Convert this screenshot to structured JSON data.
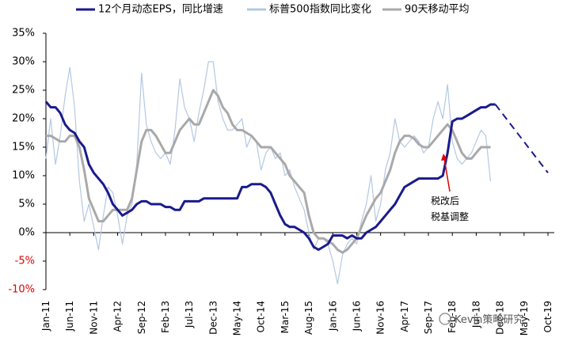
{
  "chart_data": {
    "type": "line",
    "title": "",
    "xlabel": "",
    "ylabel": "",
    "x_ticks": [
      "Jan-11",
      "Jun-11",
      "Nov-11",
      "Apr-12",
      "Sep-12",
      "Feb-13",
      "Jul-13",
      "Dec-13",
      "May-14",
      "Oct-14",
      "Mar-15",
      "Aug-15",
      "Jan-16",
      "Jun-16",
      "Nov-16",
      "Apr-17",
      "Sep-17",
      "Feb-18",
      "Jul-18",
      "Dec-18",
      "May-19",
      "Oct-19"
    ],
    "x_range": [
      "2011-01",
      "2019-10"
    ],
    "y_ticks": [
      "35%",
      "30%",
      "25%",
      "20%",
      "15%",
      "10%",
      "5%",
      "0%",
      "-5%",
      "-10%"
    ],
    "ylim": [
      -10,
      35
    ],
    "legend": {
      "position": "top",
      "items": [
        {
          "label": "12个月动态EPS，同比增速",
          "color": "#1a1a8c"
        },
        {
          "label": "标普500指数同比变化",
          "color": "#b4c8e2"
        },
        {
          "label": "90天移动平均",
          "color": "#a9a9a9"
        }
      ]
    },
    "series": [
      {
        "name": "12个月动态EPS，同比增速",
        "color": "#1a1a8c",
        "style": "solid",
        "points": [
          [
            "2011-01",
            23
          ],
          [
            "2011-02",
            22
          ],
          [
            "2011-03",
            22
          ],
          [
            "2011-04",
            21
          ],
          [
            "2011-05",
            19
          ],
          [
            "2011-06",
            18
          ],
          [
            "2011-07",
            17.5
          ],
          [
            "2011-08",
            16
          ],
          [
            "2011-09",
            15
          ],
          [
            "2011-10",
            12
          ],
          [
            "2011-11",
            10.5
          ],
          [
            "2011-12",
            9.5
          ],
          [
            "2012-01",
            8.5
          ],
          [
            "2012-02",
            7
          ],
          [
            "2012-03",
            5
          ],
          [
            "2012-04",
            4
          ],
          [
            "2012-05",
            3
          ],
          [
            "2012-06",
            3.5
          ],
          [
            "2012-07",
            4
          ],
          [
            "2012-08",
            5
          ],
          [
            "2012-09",
            5.5
          ],
          [
            "2012-10",
            5.5
          ],
          [
            "2012-11",
            5
          ],
          [
            "2012-12",
            5
          ],
          [
            "2013-01",
            5
          ],
          [
            "2013-02",
            4.5
          ],
          [
            "2013-03",
            4.5
          ],
          [
            "2013-04",
            4
          ],
          [
            "2013-05",
            4
          ],
          [
            "2013-06",
            5.5
          ],
          [
            "2013-07",
            5.5
          ],
          [
            "2013-08",
            5.5
          ],
          [
            "2013-09",
            5.5
          ],
          [
            "2013-10",
            6
          ],
          [
            "2013-11",
            6
          ],
          [
            "2013-12",
            6
          ],
          [
            "2014-01",
            6
          ],
          [
            "2014-02",
            6
          ],
          [
            "2014-03",
            6
          ],
          [
            "2014-04",
            6
          ],
          [
            "2014-05",
            6
          ],
          [
            "2014-06",
            8
          ],
          [
            "2014-07",
            8
          ],
          [
            "2014-08",
            8.5
          ],
          [
            "2014-09",
            8.5
          ],
          [
            "2014-10",
            8.5
          ],
          [
            "2014-11",
            8
          ],
          [
            "2014-12",
            7
          ],
          [
            "2015-01",
            5
          ],
          [
            "2015-02",
            3
          ],
          [
            "2015-03",
            1.5
          ],
          [
            "2015-04",
            1
          ],
          [
            "2015-05",
            1
          ],
          [
            "2015-06",
            0.5
          ],
          [
            "2015-07",
            0
          ],
          [
            "2015-08",
            -1
          ],
          [
            "2015-09",
            -2.5
          ],
          [
            "2015-10",
            -3
          ],
          [
            "2015-11",
            -2.5
          ],
          [
            "2015-12",
            -2
          ],
          [
            "2016-01",
            -0.5
          ],
          [
            "2016-02",
            -0.5
          ],
          [
            "2016-03",
            -0.5
          ],
          [
            "2016-04",
            -1
          ],
          [
            "2016-05",
            -0.5
          ],
          [
            "2016-06",
            -1
          ],
          [
            "2016-07",
            -1
          ],
          [
            "2016-08",
            0
          ],
          [
            "2016-09",
            0.5
          ],
          [
            "2016-10",
            1
          ],
          [
            "2016-11",
            2
          ],
          [
            "2016-12",
            3
          ],
          [
            "2017-01",
            4
          ],
          [
            "2017-02",
            5
          ],
          [
            "2017-03",
            6.5
          ],
          [
            "2017-04",
            8
          ],
          [
            "2017-05",
            8.5
          ],
          [
            "2017-06",
            9
          ],
          [
            "2017-07",
            9.5
          ],
          [
            "2017-08",
            9.5
          ],
          [
            "2017-09",
            9.5
          ],
          [
            "2017-10",
            9.5
          ],
          [
            "2017-11",
            9.5
          ],
          [
            "2017-12",
            10
          ],
          [
            "2018-01",
            14
          ],
          [
            "2018-02",
            19.5
          ],
          [
            "2018-03",
            20
          ],
          [
            "2018-04",
            20
          ],
          [
            "2018-05",
            20.5
          ],
          [
            "2018-06",
            21
          ],
          [
            "2018-07",
            21.5
          ],
          [
            "2018-08",
            22
          ],
          [
            "2018-09",
            22
          ],
          [
            "2018-10",
            22.5
          ],
          [
            "2018-11",
            22.5
          ]
        ]
      },
      {
        "name": "12个月动态EPS，同比增速 (预测)",
        "color": "#1a1a8c",
        "style": "dashed",
        "points": [
          [
            "2018-11",
            22.5
          ],
          [
            "2019-10",
            10.5
          ]
        ]
      },
      {
        "name": "标普500指数同比变化",
        "color": "#b4c8e2",
        "style": "solid",
        "points": [
          [
            "2011-01",
            13
          ],
          [
            "2011-02",
            20
          ],
          [
            "2011-03",
            12
          ],
          [
            "2011-04",
            17
          ],
          [
            "2011-05",
            24
          ],
          [
            "2011-06",
            29
          ],
          [
            "2011-07",
            22
          ],
          [
            "2011-08",
            9
          ],
          [
            "2011-09",
            2
          ],
          [
            "2011-10",
            5
          ],
          [
            "2011-11",
            1
          ],
          [
            "2011-12",
            -3
          ],
          [
            "2012-01",
            3
          ],
          [
            "2012-02",
            8
          ],
          [
            "2012-03",
            7
          ],
          [
            "2012-04",
            3
          ],
          [
            "2012-05",
            -2
          ],
          [
            "2012-06",
            3
          ],
          [
            "2012-07",
            5
          ],
          [
            "2012-08",
            12
          ],
          [
            "2012-09",
            28
          ],
          [
            "2012-10",
            19
          ],
          [
            "2012-11",
            16
          ],
          [
            "2012-12",
            14
          ],
          [
            "2013-01",
            13
          ],
          [
            "2013-02",
            14
          ],
          [
            "2013-03",
            12
          ],
          [
            "2013-04",
            18
          ],
          [
            "2013-05",
            27
          ],
          [
            "2013-06",
            22
          ],
          [
            "2013-07",
            20
          ],
          [
            "2013-08",
            16
          ],
          [
            "2013-09",
            21
          ],
          [
            "2013-10",
            25
          ],
          [
            "2013-11",
            30
          ],
          [
            "2013-12",
            30
          ],
          [
            "2014-01",
            23
          ],
          [
            "2014-02",
            20
          ],
          [
            "2014-03",
            18
          ],
          [
            "2014-04",
            18
          ],
          [
            "2014-05",
            19
          ],
          [
            "2014-06",
            20
          ],
          [
            "2014-07",
            15
          ],
          [
            "2014-08",
            17
          ],
          [
            "2014-09",
            16
          ],
          [
            "2014-10",
            11
          ],
          [
            "2014-11",
            14
          ],
          [
            "2014-12",
            15
          ],
          [
            "2015-01",
            13
          ],
          [
            "2015-02",
            14
          ],
          [
            "2015-03",
            10
          ],
          [
            "2015-04",
            11
          ],
          [
            "2015-05",
            8
          ],
          [
            "2015-06",
            6
          ],
          [
            "2015-07",
            4
          ],
          [
            "2015-08",
            0
          ],
          [
            "2015-09",
            -3
          ],
          [
            "2015-10",
            -1
          ],
          [
            "2015-11",
            -1
          ],
          [
            "2015-12",
            -2
          ],
          [
            "2016-01",
            -5
          ],
          [
            "2016-02",
            -9
          ],
          [
            "2016-03",
            -4
          ],
          [
            "2016-04",
            -2
          ],
          [
            "2016-05",
            -1
          ],
          [
            "2016-06",
            -2
          ],
          [
            "2016-07",
            2
          ],
          [
            "2016-08",
            5
          ],
          [
            "2016-09",
            10
          ],
          [
            "2016-10",
            2
          ],
          [
            "2016-11",
            5
          ],
          [
            "2016-12",
            11
          ],
          [
            "2017-01",
            14
          ],
          [
            "2017-02",
            20
          ],
          [
            "2017-03",
            16
          ],
          [
            "2017-04",
            15
          ],
          [
            "2017-05",
            16
          ],
          [
            "2017-06",
            17
          ],
          [
            "2017-07",
            16
          ],
          [
            "2017-08",
            14
          ],
          [
            "2017-09",
            15
          ],
          [
            "2017-10",
            20
          ],
          [
            "2017-11",
            23
          ],
          [
            "2017-12",
            20
          ],
          [
            "2018-01",
            26
          ],
          [
            "2018-02",
            16
          ],
          [
            "2018-03",
            13
          ],
          [
            "2018-04",
            12
          ],
          [
            "2018-05",
            13
          ],
          [
            "2018-06",
            14
          ],
          [
            "2018-07",
            16
          ],
          [
            "2018-08",
            18
          ],
          [
            "2018-09",
            17
          ],
          [
            "2018-10",
            9
          ]
        ]
      },
      {
        "name": "90天移动平均",
        "color": "#a9a9a9",
        "style": "solid",
        "points": [
          [
            "2011-01",
            17
          ],
          [
            "2011-02",
            17
          ],
          [
            "2011-03",
            16.5
          ],
          [
            "2011-04",
            16
          ],
          [
            "2011-05",
            16
          ],
          [
            "2011-06",
            17
          ],
          [
            "2011-07",
            17
          ],
          [
            "2011-08",
            15
          ],
          [
            "2011-09",
            11
          ],
          [
            "2011-10",
            6
          ],
          [
            "2011-11",
            4
          ],
          [
            "2011-12",
            2
          ],
          [
            "2012-01",
            2
          ],
          [
            "2012-02",
            3
          ],
          [
            "2012-03",
            4
          ],
          [
            "2012-04",
            4
          ],
          [
            "2012-05",
            4
          ],
          [
            "2012-06",
            4
          ],
          [
            "2012-07",
            6
          ],
          [
            "2012-08",
            11
          ],
          [
            "2012-09",
            16
          ],
          [
            "2012-10",
            18
          ],
          [
            "2012-11",
            18
          ],
          [
            "2012-12",
            17
          ],
          [
            "2013-01",
            15.5
          ],
          [
            "2013-02",
            14
          ],
          [
            "2013-03",
            14
          ],
          [
            "2013-04",
            16
          ],
          [
            "2013-05",
            18
          ],
          [
            "2013-06",
            19
          ],
          [
            "2013-07",
            20
          ],
          [
            "2013-08",
            19
          ],
          [
            "2013-09",
            19
          ],
          [
            "2013-10",
            21
          ],
          [
            "2013-11",
            23
          ],
          [
            "2013-12",
            25
          ],
          [
            "2014-01",
            24
          ],
          [
            "2014-02",
            22
          ],
          [
            "2014-03",
            21
          ],
          [
            "2014-04",
            19
          ],
          [
            "2014-05",
            18
          ],
          [
            "2014-06",
            18
          ],
          [
            "2014-07",
            17.5
          ],
          [
            "2014-08",
            17
          ],
          [
            "2014-09",
            16
          ],
          [
            "2014-10",
            15
          ],
          [
            "2014-11",
            15
          ],
          [
            "2014-12",
            15
          ],
          [
            "2015-01",
            14
          ],
          [
            "2015-02",
            13
          ],
          [
            "2015-03",
            12
          ],
          [
            "2015-04",
            10
          ],
          [
            "2015-05",
            9
          ],
          [
            "2015-06",
            8
          ],
          [
            "2015-07",
            7
          ],
          [
            "2015-08",
            3
          ],
          [
            "2015-09",
            0
          ],
          [
            "2015-10",
            -1
          ],
          [
            "2015-11",
            -1
          ],
          [
            "2015-12",
            -1.5
          ],
          [
            "2016-01",
            -2
          ],
          [
            "2016-02",
            -3
          ],
          [
            "2016-03",
            -3.5
          ],
          [
            "2016-04",
            -3
          ],
          [
            "2016-05",
            -2
          ],
          [
            "2016-06",
            -1
          ],
          [
            "2016-07",
            1
          ],
          [
            "2016-08",
            3
          ],
          [
            "2016-09",
            4.5
          ],
          [
            "2016-10",
            6
          ],
          [
            "2016-11",
            7
          ],
          [
            "2016-12",
            9
          ],
          [
            "2017-01",
            11
          ],
          [
            "2017-02",
            14
          ],
          [
            "2017-03",
            16
          ],
          [
            "2017-04",
            17
          ],
          [
            "2017-05",
            17
          ],
          [
            "2017-06",
            16.5
          ],
          [
            "2017-07",
            15.5
          ],
          [
            "2017-08",
            15
          ],
          [
            "2017-09",
            15
          ],
          [
            "2017-10",
            16
          ],
          [
            "2017-11",
            17
          ],
          [
            "2017-12",
            18
          ],
          [
            "2018-01",
            19
          ],
          [
            "2018-02",
            18
          ],
          [
            "2018-03",
            16
          ],
          [
            "2018-04",
            14
          ],
          [
            "2018-05",
            13
          ],
          [
            "2018-06",
            13
          ],
          [
            "2018-07",
            14
          ],
          [
            "2018-08",
            15
          ],
          [
            "2018-09",
            15
          ],
          [
            "2018-10",
            15
          ]
        ]
      }
    ],
    "annotation": {
      "lines": [
        "税改后",
        "税基调整"
      ],
      "arrow_color": "#e00000"
    },
    "watermark": "Kevin策略研究"
  }
}
